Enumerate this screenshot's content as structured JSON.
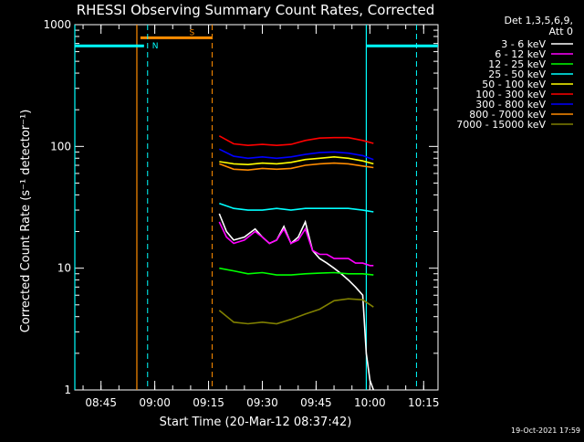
{
  "chart_data": {
    "type": "line",
    "title": "RHESSI Observing Summary Count Rates, Corrected",
    "xlabel": "Start Time (20-Mar-12 08:37:42)",
    "ylabel": "Corrected Count Rate (s⁻¹ detector⁻¹)",
    "y_scale": "log",
    "ylim": [
      1,
      1000
    ],
    "xlim": [
      "08:37:42",
      "10:19:00"
    ],
    "x_ticks": [
      "08:45",
      "09:00",
      "09:15",
      "09:30",
      "09:45",
      "10:00",
      "10:15"
    ],
    "y_ticks": [
      "1",
      "10",
      "100",
      "1000"
    ],
    "legend_header": [
      "Det 1,3,5,6,9,",
      "Att 0"
    ],
    "legend_position": "right",
    "series": [
      {
        "name": "3 - 6 keV",
        "color": "#ffffff",
        "x": [
          "09:18",
          "09:20",
          "09:22",
          "09:25",
          "09:28",
          "09:30",
          "09:32",
          "09:34",
          "09:36",
          "09:38",
          "09:40",
          "09:42",
          "09:44",
          "09:46",
          "09:48",
          "09:50",
          "09:52",
          "09:54",
          "09:56",
          "09:58",
          "09:59",
          "10:00",
          "10:01"
        ],
        "values": [
          28,
          20,
          17,
          18,
          21,
          18,
          16,
          17,
          22,
          16,
          18,
          24,
          14,
          12,
          11,
          10,
          9,
          8,
          7,
          6,
          2,
          1.2,
          1
        ]
      },
      {
        "name": "6 - 12 keV",
        "color": "#ff00ff",
        "x": [
          "09:18",
          "09:20",
          "09:22",
          "09:25",
          "09:28",
          "09:30",
          "09:32",
          "09:34",
          "09:36",
          "09:38",
          "09:40",
          "09:42",
          "09:44",
          "09:46",
          "09:48",
          "09:50",
          "09:52",
          "09:54",
          "09:56",
          "09:58",
          "10:00",
          "10:01"
        ],
        "values": [
          24,
          18,
          16,
          17,
          20,
          18,
          16,
          17,
          21,
          16,
          17,
          21,
          14,
          13,
          13,
          12,
          12,
          12,
          11,
          11,
          10.5,
          10.5
        ]
      },
      {
        "name": "12 - 25 keV",
        "color": "#00ff00",
        "x": [
          "09:18",
          "09:22",
          "09:26",
          "09:30",
          "09:34",
          "09:38",
          "09:42",
          "09:46",
          "09:50",
          "09:54",
          "09:58",
          "10:01"
        ],
        "values": [
          10,
          9.5,
          9,
          9.2,
          8.8,
          8.8,
          9,
          9.1,
          9.2,
          9.0,
          9.0,
          8.8
        ]
      },
      {
        "name": "25 - 50 keV",
        "color": "#00ffff",
        "x": [
          "09:18",
          "09:22",
          "09:26",
          "09:30",
          "09:34",
          "09:38",
          "09:42",
          "09:46",
          "09:50",
          "09:54",
          "09:58",
          "10:01"
        ],
        "values": [
          34,
          31,
          30,
          30,
          31,
          30,
          31,
          31,
          31,
          31,
          30,
          29
        ]
      },
      {
        "name": "50 - 100 keV",
        "color": "#ffff00",
        "x": [
          "09:18",
          "09:22",
          "09:26",
          "09:30",
          "09:34",
          "09:38",
          "09:42",
          "09:46",
          "09:50",
          "09:54",
          "09:58",
          "10:01"
        ],
        "values": [
          75,
          72,
          71,
          73,
          72,
          74,
          78,
          80,
          82,
          80,
          76,
          72
        ]
      },
      {
        "name": "100 - 300 keV",
        "color": "#ff0000",
        "x": [
          "09:18",
          "09:22",
          "09:26",
          "09:30",
          "09:34",
          "09:38",
          "09:42",
          "09:46",
          "09:50",
          "09:54",
          "09:58",
          "10:01"
        ],
        "values": [
          122,
          105,
          102,
          104,
          102,
          104,
          112,
          117,
          118,
          118,
          112,
          106
        ]
      },
      {
        "name": "300 - 800 keV",
        "color": "#0000ff",
        "x": [
          "09:18",
          "09:22",
          "09:26",
          "09:30",
          "09:34",
          "09:38",
          "09:42",
          "09:46",
          "09:50",
          "09:54",
          "09:58",
          "10:01"
        ],
        "values": [
          95,
          83,
          80,
          82,
          80,
          82,
          86,
          89,
          90,
          88,
          84,
          78
        ]
      },
      {
        "name": "800 - 7000 keV",
        "color": "#ff8c00",
        "x": [
          "09:18",
          "09:22",
          "09:26",
          "09:30",
          "09:34",
          "09:38",
          "09:42",
          "09:46",
          "09:50",
          "09:54",
          "09:58",
          "10:01"
        ],
        "values": [
          72,
          65,
          64,
          66,
          65,
          66,
          70,
          72,
          73,
          72,
          69,
          67
        ]
      },
      {
        "name": "7000 - 15000 keV",
        "color": "#808000",
        "x": [
          "09:18",
          "09:22",
          "09:26",
          "09:30",
          "09:34",
          "09:38",
          "09:42",
          "09:46",
          "09:50",
          "09:54",
          "09:58",
          "10:01"
        ],
        "values": [
          4.5,
          3.6,
          3.5,
          3.6,
          3.5,
          3.8,
          4.2,
          4.6,
          5.4,
          5.6,
          5.5,
          4.8
        ]
      }
    ],
    "markers": [
      {
        "label": "S",
        "color": "#ff8c00",
        "solid": "08:55",
        "dashed": "09:16",
        "bar": [
          "08:56",
          "09:16"
        ],
        "bar_y": 780
      },
      {
        "label": "N",
        "color": "#00ffff",
        "solid": "08:37:42",
        "dashed": "08:58",
        "bar": [
          "08:37:42",
          "08:57"
        ],
        "bar_y": 670
      },
      {
        "label": "",
        "color": "#00ffff",
        "solid": "09:59",
        "dashed": "10:13",
        "bar": [
          "09:59",
          "10:19"
        ],
        "bar_y": 670
      }
    ]
  },
  "footer": {
    "timestamp": "19-Oct-2021 17:59"
  }
}
